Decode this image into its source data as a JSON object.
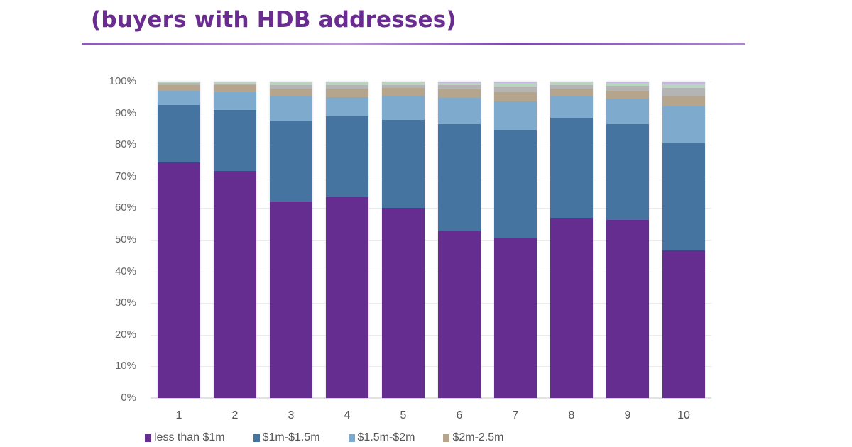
{
  "title": "(buyers with HDB addresses)",
  "colors": {
    "title": "#6a2c91",
    "less_than_1m": "#652d90",
    "1m_1_5m": "#4674a0",
    "1_5m_2m": "#7eaacd",
    "2m_2_5m": "#b5a58c",
    "other_gray": "#b4b4b4",
    "other_green": "#b9d5bf",
    "other_lavender": "#c4b8dd"
  },
  "chart_data": {
    "type": "bar",
    "stacked": true,
    "normalized": true,
    "title": "(buyers with HDB addresses)",
    "xlabel": "",
    "ylabel": "",
    "ylim": [
      0,
      100
    ],
    "y_ticks": [
      "0%",
      "10%",
      "20%",
      "30%",
      "40%",
      "50%",
      "60%",
      "70%",
      "80%",
      "90%",
      "100%"
    ],
    "categories": [
      "1",
      "2",
      "3",
      "4",
      "5",
      "6",
      "7",
      "8",
      "9",
      "10"
    ],
    "grid": true,
    "legend_position": "bottom",
    "series": [
      {
        "name": "less than $1m",
        "color": "#652d90",
        "values": [
          74.4,
          71.7,
          62.0,
          63.4,
          60.0,
          52.9,
          50.4,
          57.0,
          56.3,
          46.6
        ]
      },
      {
        "name": "$1m-$1.5m",
        "color": "#4674a0",
        "values": [
          18.2,
          19.3,
          25.7,
          25.6,
          28.0,
          33.6,
          34.4,
          31.6,
          30.2,
          33.9
        ]
      },
      {
        "name": "$1.5m-$2m",
        "color": "#7eaacd",
        "values": [
          4.4,
          5.6,
          7.6,
          6.0,
          7.5,
          8.3,
          8.9,
          6.7,
          8.1,
          11.7
        ]
      },
      {
        "name": "$2m-2.5m",
        "color": "#b5a58c",
        "values": [
          2.0,
          2.2,
          2.5,
          2.8,
          2.5,
          2.7,
          2.9,
          2.5,
          2.5,
          3.1
        ]
      },
      {
        "name": "",
        "color": "#b4b4b4",
        "values": [
          0.5,
          0.6,
          1.2,
          1.2,
          1.0,
          1.3,
          1.8,
          1.2,
          1.5,
          2.7
        ]
      },
      {
        "name": "",
        "color": "#b9d5bf",
        "values": [
          0.3,
          0.4,
          0.7,
          0.7,
          0.7,
          0.8,
          1.1,
          0.7,
          1.0,
          1.1
        ]
      },
      {
        "name": "",
        "color": "#c4b8dd",
        "values": [
          0.2,
          0.2,
          0.3,
          0.3,
          0.3,
          0.4,
          0.5,
          0.3,
          0.4,
          0.9
        ]
      }
    ]
  },
  "legend": [
    {
      "label": "less than $1m",
      "color": "#652d90"
    },
    {
      "label": "$1m-$1.5m",
      "color": "#4674a0"
    },
    {
      "label": "$1.5m-$2m",
      "color": "#7eaacd"
    },
    {
      "label": "$2m-2.5m",
      "color": "#b5a58c"
    }
  ]
}
